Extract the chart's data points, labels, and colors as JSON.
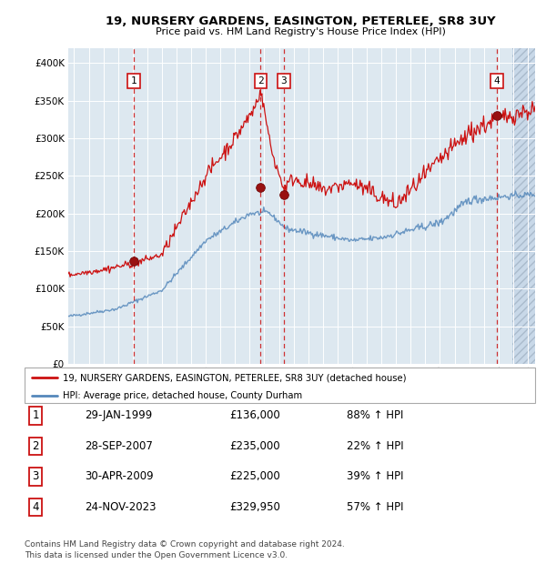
{
  "title": "19, NURSERY GARDENS, EASINGTON, PETERLEE, SR8 3UY",
  "subtitle": "Price paid vs. HM Land Registry's House Price Index (HPI)",
  "transactions": [
    {
      "label": "1",
      "date_num": 1999.08,
      "price": 136000,
      "date_str": "29-JAN-1999",
      "pct": "88% ↑ HPI"
    },
    {
      "label": "2",
      "date_num": 2007.74,
      "price": 235000,
      "date_str": "28-SEP-2007",
      "pct": "22% ↑ HPI"
    },
    {
      "label": "3",
      "date_num": 2009.33,
      "price": 225000,
      "date_str": "30-APR-2009",
      "pct": "39% ↑ HPI"
    },
    {
      "label": "4",
      "date_num": 2023.9,
      "price": 329950,
      "date_str": "24-NOV-2023",
      "pct": "57% ↑ HPI"
    }
  ],
  "legend_line1": "19, NURSERY GARDENS, EASINGTON, PETERLEE, SR8 3UY (detached house)",
  "legend_line2": "HPI: Average price, detached house, County Durham",
  "footer1": "Contains HM Land Registry data © Crown copyright and database right 2024.",
  "footer2": "This data is licensed under the Open Government Licence v3.0.",
  "hpi_color": "#5588bb",
  "price_color": "#cc1111",
  "bg_color": "#dde8f0",
  "grid_color": "#ffffff",
  "ylim": [
    0,
    420000
  ],
  "xlim_start": 1994.6,
  "xlim_end": 2026.5,
  "hatch_start": 2024.92
}
